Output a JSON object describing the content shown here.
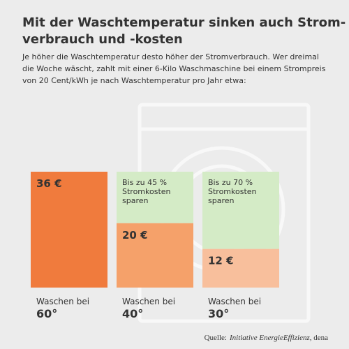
{
  "chart_data": {
    "type": "bar",
    "title": [
      "Mit der Waschtemperatur sinken auch Strom-",
      "verbrauch und -kosten"
    ],
    "subtitle": [
      "Je höher die Waschtemperatur desto höher der Stromverbrauch. Wer dreimal",
      "die Woche wäscht, zahlt mit einer 6-Kilo Waschmaschine bei einem Strompreis",
      "von 20 Cent/kWh  je nach Waschtemperatur pro Jahr etwa:"
    ],
    "categories": [
      "60°",
      "40°",
      "30°"
    ],
    "category_captions": [
      "Waschen bei",
      "Waschen bei",
      "Waschen bei"
    ],
    "values": [
      36,
      20,
      12
    ],
    "value_labels": [
      "36 €",
      "20 €",
      "12 €"
    ],
    "colors": [
      "#f07b3d",
      "#f5a16a",
      "#f8bf9c"
    ],
    "saving_color": "#d4ebc6",
    "annotations": [
      [
        "Bis zu 45 %",
        "Stromkosten",
        "sparen"
      ],
      [
        "Bis zu 70 %",
        "Stromkosten",
        "sparen"
      ]
    ],
    "ylim": [
      0,
      36
    ],
    "source": [
      "Quelle:",
      "Initiative EnergieEffizienz",
      ", dena"
    ]
  }
}
